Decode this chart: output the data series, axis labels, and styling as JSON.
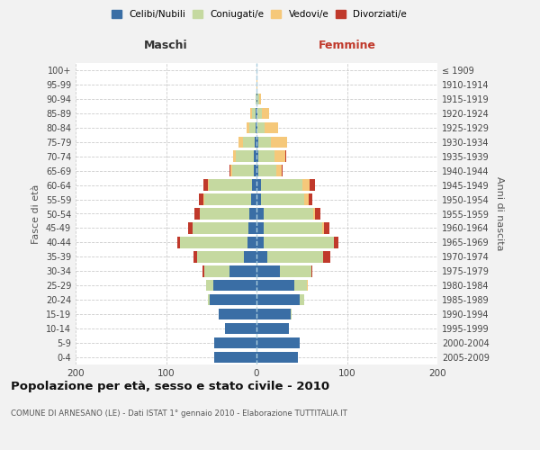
{
  "age_groups": [
    "0-4",
    "5-9",
    "10-14",
    "15-19",
    "20-24",
    "25-29",
    "30-34",
    "35-39",
    "40-44",
    "45-49",
    "50-54",
    "55-59",
    "60-64",
    "65-69",
    "70-74",
    "75-79",
    "80-84",
    "85-89",
    "90-94",
    "95-99",
    "100+"
  ],
  "birth_years": [
    "2005-2009",
    "2000-2004",
    "1995-1999",
    "1990-1994",
    "1985-1989",
    "1980-1984",
    "1975-1979",
    "1970-1974",
    "1965-1969",
    "1960-1964",
    "1955-1959",
    "1950-1954",
    "1945-1949",
    "1940-1944",
    "1935-1939",
    "1930-1934",
    "1925-1929",
    "1920-1924",
    "1915-1919",
    "1910-1914",
    "≤ 1909"
  ],
  "males": {
    "celibi": [
      47,
      47,
      35,
      42,
      52,
      48,
      30,
      14,
      10,
      9,
      8,
      6,
      5,
      3,
      3,
      2,
      1,
      1,
      0,
      0,
      0
    ],
    "coniugati": [
      0,
      0,
      0,
      0,
      2,
      8,
      28,
      52,
      75,
      62,
      55,
      52,
      48,
      24,
      20,
      13,
      7,
      4,
      1,
      0,
      0
    ],
    "vedovi": [
      0,
      0,
      0,
      0,
      0,
      0,
      0,
      0,
      0,
      0,
      0,
      1,
      1,
      2,
      3,
      5,
      3,
      2,
      0,
      0,
      0
    ],
    "divorziati": [
      0,
      0,
      0,
      0,
      0,
      0,
      2,
      4,
      3,
      5,
      6,
      5,
      5,
      1,
      0,
      0,
      0,
      0,
      0,
      0,
      0
    ]
  },
  "females": {
    "nubili": [
      46,
      48,
      36,
      38,
      48,
      42,
      26,
      12,
      8,
      8,
      8,
      5,
      5,
      2,
      2,
      2,
      1,
      1,
      1,
      0,
      0
    ],
    "coniugate": [
      0,
      0,
      0,
      1,
      5,
      14,
      35,
      62,
      78,
      65,
      55,
      48,
      46,
      20,
      18,
      14,
      8,
      5,
      2,
      0,
      0
    ],
    "vedove": [
      0,
      0,
      0,
      0,
      0,
      1,
      0,
      0,
      0,
      2,
      2,
      5,
      8,
      6,
      12,
      18,
      15,
      8,
      2,
      1,
      0
    ],
    "divorziate": [
      0,
      0,
      0,
      0,
      0,
      0,
      1,
      8,
      5,
      6,
      6,
      4,
      6,
      1,
      1,
      0,
      0,
      0,
      0,
      0,
      0
    ]
  },
  "colors": {
    "celibi": "#3a6ea5",
    "coniugati": "#c5d9a0",
    "vedovi": "#f5c87a",
    "divorziati": "#c0392b"
  },
  "xlim": 200,
  "title": "Popolazione per età, sesso e stato civile - 2010",
  "subtitle": "COMUNE DI ARNESANO (LE) - Dati ISTAT 1° gennaio 2010 - Elaborazione TUTTITALIA.IT",
  "ylabel_left": "Fasce di età",
  "ylabel_right": "Anni di nascita",
  "xlabel_left": "Maschi",
  "xlabel_right": "Femmine",
  "bg_color": "#f2f2f2",
  "plot_bg_color": "#ffffff"
}
